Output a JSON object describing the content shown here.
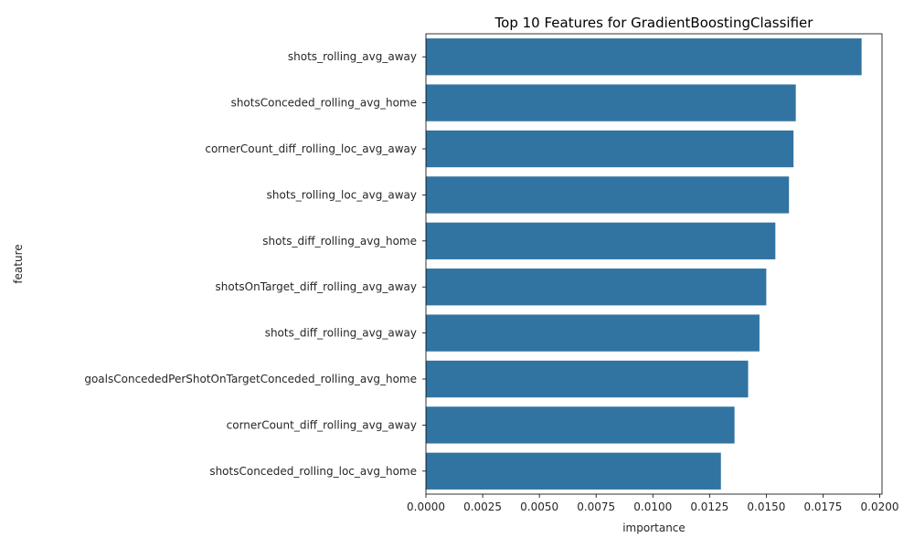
{
  "chart_data": {
    "type": "bar",
    "orientation": "horizontal",
    "title": "Top 10 Features for GradientBoostingClassifier",
    "xlabel": "importance",
    "ylabel": "feature",
    "categories": [
      "shots_rolling_avg_away",
      "shotsConceded_rolling_avg_home",
      "cornerCount_diff_rolling_loc_avg_away",
      "shots_rolling_loc_avg_away",
      "shots_diff_rolling_avg_home",
      "shotsOnTarget_diff_rolling_avg_away",
      "shots_diff_rolling_avg_away",
      "goalsConcededPerShotOnTargetConceded_rolling_avg_home",
      "cornerCount_diff_rolling_avg_away",
      "shotsConceded_rolling_loc_avg_home"
    ],
    "values": [
      0.0192,
      0.0163,
      0.0162,
      0.016,
      0.0154,
      0.015,
      0.0147,
      0.0142,
      0.0136,
      0.013
    ],
    "xlim": [
      0,
      0.0201
    ],
    "xticks": [
      "0.0000",
      "0.0025",
      "0.0050",
      "0.0075",
      "0.0100",
      "0.0125",
      "0.0150",
      "0.0175",
      "0.0200"
    ],
    "bar_color": "#3274a1",
    "grid": false,
    "legend": "none"
  }
}
